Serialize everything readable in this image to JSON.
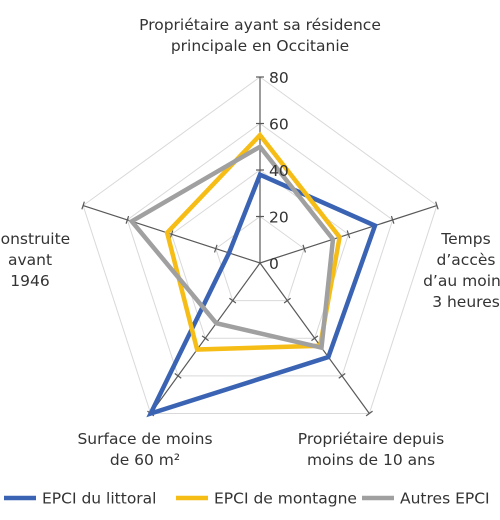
{
  "chart_data": {
    "type": "radar",
    "axes": [
      [
        "Propriétaire ayant sa résidence",
        "principale en Occitanie"
      ],
      [
        "Temps",
        "d’accès",
        "d’au moins",
        "3 heures"
      ],
      [
        "Propriétaire depuis",
        "moins de 10 ans"
      ],
      [
        "Surface de moins",
        "de 60 m²"
      ],
      [
        "Construite",
        "avant",
        "1946"
      ]
    ],
    "r_ticks": [
      "0",
      "20",
      "40",
      "60",
      "80"
    ],
    "r_range": [
      0,
      80
    ],
    "series": [
      {
        "name": "EPCI du littoral",
        "color": "#3a64b3",
        "values": [
          38,
          52,
          50,
          80,
          14
        ]
      },
      {
        "name": "EPCI de montagne",
        "color": "#f5bd16",
        "values": [
          55,
          36,
          44,
          46,
          42
        ]
      },
      {
        "name": "Autres EPCI",
        "color": "#a0a0a0",
        "values": [
          50,
          33,
          45,
          32,
          58
        ]
      }
    ],
    "grid": true,
    "legend_position": "bottom"
  }
}
